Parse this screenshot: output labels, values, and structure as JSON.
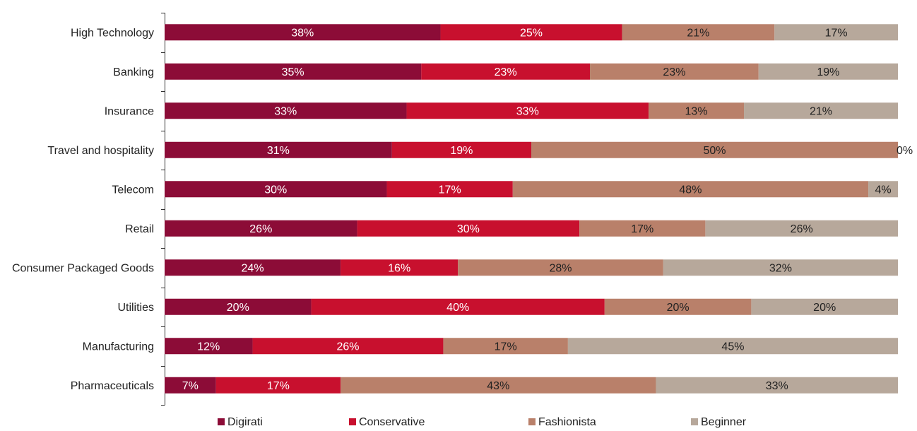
{
  "chart_data": {
    "type": "bar",
    "orientation": "horizontal",
    "stacked": true,
    "categories": [
      "High Technology",
      "Banking",
      "Insurance",
      "Travel and hospitality",
      "Telecom",
      "Retail",
      "Consumer Packaged Goods",
      "Utilities",
      "Manufacturing",
      "Pharmaceuticals"
    ],
    "series": [
      {
        "name": "Digirati",
        "color": "#8c0c37",
        "label_color": "#ffffff",
        "values": [
          38,
          35,
          33,
          31,
          30,
          26,
          24,
          20,
          12,
          7
        ]
      },
      {
        "name": "Conservative",
        "color": "#c8102e",
        "label_color": "#ffffff",
        "values": [
          25,
          23,
          33,
          19,
          17,
          30,
          16,
          40,
          26,
          17
        ]
      },
      {
        "name": "Fashionista",
        "color": "#b9806a",
        "label_color": "#222222",
        "values": [
          21,
          23,
          13,
          50,
          48,
          17,
          28,
          20,
          17,
          43
        ]
      },
      {
        "name": "Beginner",
        "color": "#b7a89b",
        "label_color": "#222222",
        "values": [
          17,
          19,
          21,
          0,
          4,
          26,
          32,
          20,
          45,
          33
        ]
      }
    ],
    "value_suffix": "%",
    "title": "",
    "xlabel": "",
    "ylabel": "",
    "grid": false,
    "legend_position": "bottom"
  }
}
